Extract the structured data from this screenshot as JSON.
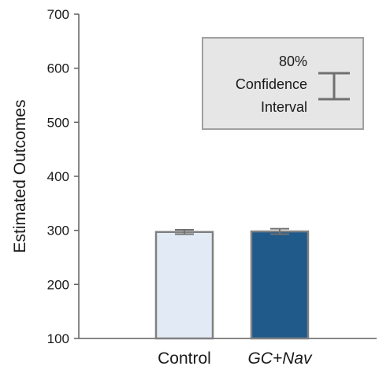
{
  "chart_data": {
    "type": "bar",
    "categories": [
      "Control",
      "GC+Nav"
    ],
    "category_styles": [
      "normal",
      "italic"
    ],
    "values": [
      297,
      298
    ],
    "ci_low": [
      293,
      293
    ],
    "ci_high": [
      301,
      303
    ],
    "bar_colors": [
      "#e2ebf5",
      "#1f5a8a"
    ],
    "bar_edge_color": "#808080",
    "ci_color": "#707070",
    "xlabel": "",
    "ylabel": "Estimated Outcomes",
    "ylim": [
      100,
      700
    ],
    "yticks": [
      100,
      200,
      300,
      400,
      500,
      600,
      700
    ],
    "grid": false,
    "legend": {
      "placement": "top-right",
      "lines": [
        "80%",
        "Confidence",
        "Interval"
      ],
      "background": "#e6e6e6",
      "border": "#a0a0a0"
    }
  }
}
